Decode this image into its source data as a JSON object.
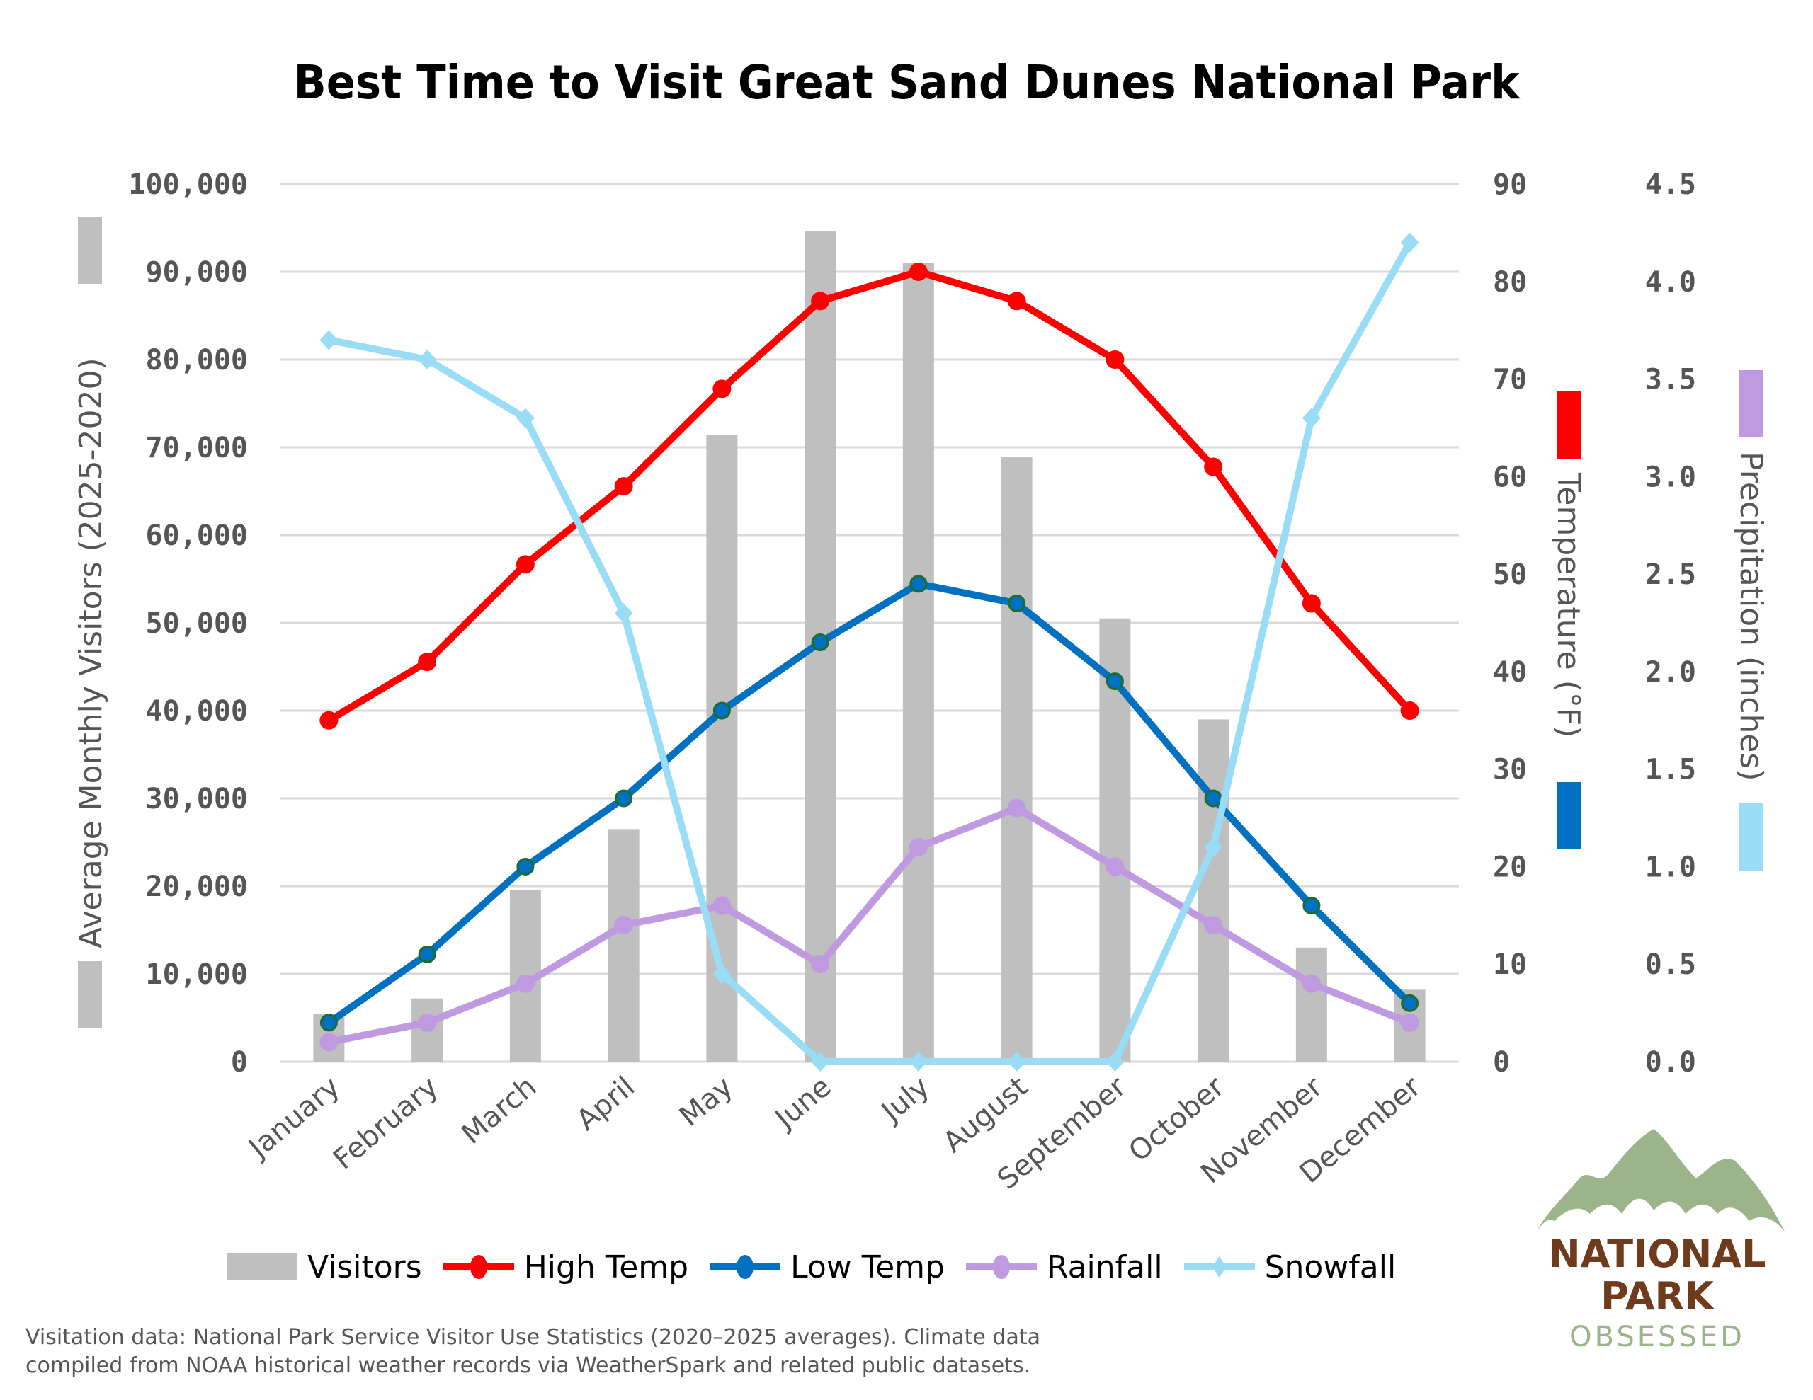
{
  "title": "Best Time to Visit Great Sand Dunes National Park",
  "axes": {
    "left": {
      "title": "Average Monthly Visitors (2025-2020)",
      "ticks": [
        "100,000",
        "90,000",
        "80,000",
        "70,000",
        "60,000",
        "50,000",
        "40,000",
        "30,000",
        "20,000",
        "10,000",
        "0"
      ]
    },
    "temp": {
      "title": "Temperature (°F)",
      "ticks": [
        "90",
        "80",
        "70",
        "60",
        "50",
        "40",
        "30",
        "20",
        "10",
        "0"
      ]
    },
    "precip": {
      "title": "Precipitation (inches)",
      "ticks": [
        "4.5",
        "4.0",
        "3.5",
        "3.0",
        "2.5",
        "2.0",
        "1.5",
        "1.0",
        "0.5",
        "0.0"
      ]
    }
  },
  "months": [
    "January",
    "February",
    "March",
    "April",
    "May",
    "June",
    "July",
    "August",
    "September",
    "October",
    "November",
    "December"
  ],
  "legend": {
    "visitors": "Visitors",
    "high": "High Temp",
    "low": "Low Temp",
    "rain": "Rainfall",
    "snow": "Snowfall"
  },
  "colors": {
    "visitors": "#bfbfbf",
    "high": "#ff0000",
    "low": "#0070c0",
    "low_marker_border": "#1e6b2a",
    "rain": "#c09ae0",
    "snow": "#99dcf5",
    "grid": "#d9d9d9"
  },
  "footnote": {
    "line1": "Visitation data: National Park Service Visitor Use Statistics (2020–2025 averages). Climate data",
    "line2": "compiled from NOAA historical weather records via WeatherSpark and related public datasets."
  },
  "logo": {
    "line1": "NATIONAL",
    "line2": "PARK",
    "line3": "OBSESSED"
  },
  "chart_data": {
    "type": "bar",
    "title": "Best Time to Visit Great Sand Dunes National Park",
    "categories": [
      "January",
      "February",
      "March",
      "April",
      "May",
      "June",
      "July",
      "August",
      "September",
      "October",
      "November",
      "December"
    ],
    "series": [
      {
        "name": "Visitors",
        "type": "bar",
        "axis": "left",
        "values": [
          5400,
          7200,
          19600,
          26500,
          71400,
          94600,
          91000,
          68900,
          50500,
          39000,
          13000,
          8200
        ]
      },
      {
        "name": "High Temp",
        "type": "line",
        "axis": "temp",
        "values": [
          35,
          41,
          51,
          59,
          69,
          78,
          81,
          78,
          72,
          61,
          47,
          36
        ]
      },
      {
        "name": "Low Temp",
        "type": "line",
        "axis": "temp",
        "values": [
          4,
          11,
          20,
          27,
          36,
          43,
          49,
          47,
          39,
          27,
          16,
          6
        ]
      },
      {
        "name": "Rainfall",
        "type": "line",
        "axis": "precip",
        "values": [
          0.1,
          0.2,
          0.4,
          0.7,
          0.8,
          0.5,
          1.1,
          1.3,
          1.0,
          0.7,
          0.4,
          0.2
        ]
      },
      {
        "name": "Snowfall",
        "type": "line",
        "axis": "precip",
        "values": [
          3.7,
          3.6,
          3.3,
          2.3,
          0.45,
          0,
          0,
          0,
          0,
          1.1,
          3.3,
          4.2
        ]
      }
    ],
    "xlabel": "",
    "ylabel": "Average Monthly Visitors (2025-2020)",
    "y2label": "Temperature (°F)",
    "y3label": "Precipitation (inches)",
    "ylim": [
      0,
      100000
    ],
    "y2lim": [
      0,
      90
    ],
    "y3lim": [
      0,
      4.5
    ],
    "grid": true,
    "legend_position": "bottom"
  }
}
